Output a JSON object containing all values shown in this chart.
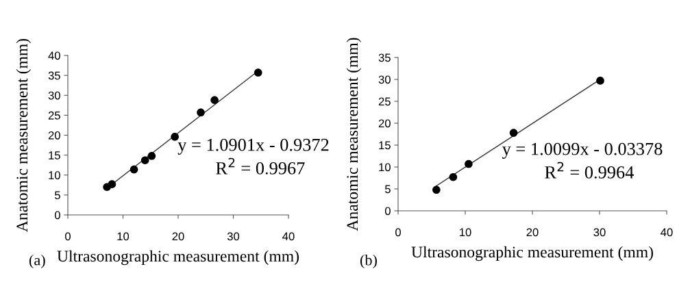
{
  "chart_data": [
    {
      "type": "scatter",
      "xlabel": "Ultrasonographic measurement (mm)",
      "ylabel": "Anatomic measurement (mm)",
      "xlim": [
        0,
        40
      ],
      "xticks": [
        0,
        10,
        20,
        30,
        40
      ],
      "ylim": [
        0,
        40
      ],
      "yticks": [
        0,
        5,
        10,
        15,
        20,
        25,
        30,
        35,
        40
      ],
      "grid": false,
      "legend": false,
      "marker": "circle",
      "annotations": [
        "y = 1.0901x - 0.9372",
        "R$^{2}$ = 0.9967",
        "(a)"
      ],
      "series": [
        {
          "color": "#000000",
          "x": [
            7.1,
            8.0,
            12.0,
            14.0,
            15.2,
            19.4,
            24.1,
            26.6,
            34.5
          ],
          "values": [
            7.0,
            7.7,
            11.4,
            13.7,
            14.8,
            19.6,
            25.7,
            28.8,
            35.7
          ]
        },
        {
          "type": "line",
          "color": "#333333",
          "x": [
            7.0,
            34.5
          ],
          "values": [
            6.6,
            36.1
          ],
          "line_style": "solid",
          "marker": "none"
        }
      ]
    },
    {
      "type": "scatter",
      "xlabel": "Ultrasonographic measurement (mm)",
      "ylabel": "Anatomic measurement (mm)",
      "xlim": [
        0,
        40
      ],
      "xticks": [
        0,
        10,
        20,
        30,
        40
      ],
      "ylim": [
        0,
        35
      ],
      "yticks": [
        0,
        5,
        10,
        15,
        20,
        25,
        30,
        35
      ],
      "grid": false,
      "legend": false,
      "marker": "circle",
      "annotations": [
        "y = 1.0099x - 0.03378",
        "R$^{2}$ = 0.9964",
        "(b)"
      ],
      "series": [
        {
          "color": "#000000",
          "x": [
            5.7,
            8.2,
            10.5,
            17.2,
            30.1
          ],
          "values": [
            4.8,
            7.7,
            10.7,
            17.8,
            29.7
          ]
        },
        {
          "type": "line",
          "color": "#333333",
          "x": [
            5.7,
            30.1
          ],
          "values": [
            5.7,
            30.0
          ],
          "line_style": "solid",
          "marker": "none"
        }
      ]
    }
  ]
}
